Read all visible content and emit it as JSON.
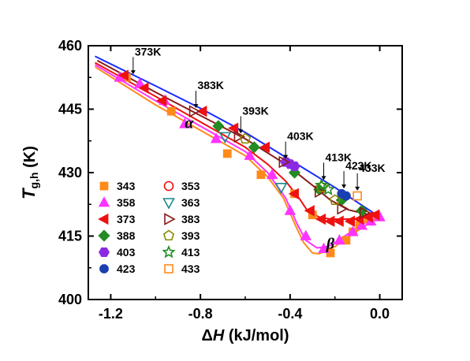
{
  "chart_data": {
    "type": "scatter",
    "xlabel": "ΔH (kJ/mol)",
    "ylabel": "T g,h (K)",
    "xlabel_parts": [
      "Δ",
      "H",
      " (kJ/mol)"
    ],
    "ylabel_parts": [
      "T",
      "g,h",
      " (K)"
    ],
    "xlim": [
      -1.3,
      0.1
    ],
    "ylim": [
      400,
      460
    ],
    "xticks": [
      "-1.2",
      "-0.8",
      "-0.4",
      "0.0"
    ],
    "xtick_values": [
      -1.2,
      -0.8,
      -0.4,
      0.0
    ],
    "yticks": [
      "400",
      "415",
      "430",
      "445",
      "460"
    ],
    "ytick_values": [
      400,
      415,
      430,
      445,
      460
    ],
    "grid": false,
    "legend_position": "bottom-left (inside plot)",
    "region_labels": [
      {
        "text": "α",
        "x": -0.85,
        "y": 440.5
      },
      {
        "text": "β",
        "x": -0.22,
        "y": 412
      }
    ],
    "annotations": [
      {
        "text": "373K",
        "x": -1.1,
        "y": 452.5
      },
      {
        "text": "383K",
        "x": -0.82,
        "y": 444.5
      },
      {
        "text": "393K",
        "x": -0.62,
        "y": 438.5
      },
      {
        "text": "403K",
        "x": -0.42,
        "y": 432.5
      },
      {
        "text": "413K",
        "x": -0.25,
        "y": 427.5
      },
      {
        "text": "423K",
        "x": -0.16,
        "y": 425.5
      },
      {
        "text": "433K",
        "x": -0.1,
        "y": 425
      }
    ],
    "series": [
      {
        "name": "343",
        "marker": "square",
        "filled": true,
        "color": "#ff8a1a",
        "x": [
          -1.13,
          -0.93,
          -0.68,
          -0.53,
          -0.38,
          -0.3,
          -0.22,
          -0.15,
          -0.12,
          -0.09,
          -0.05
        ],
        "y": [
          452.5,
          444.5,
          434.5,
          429.5,
          425.0,
          420.0,
          411.0,
          414.0,
          416.0,
          417.5,
          419.0
        ]
      },
      {
        "name": "358",
        "marker": "triangle-up",
        "filled": true,
        "color": "#ff33ff",
        "x": [
          -1.16,
          -1.07,
          -0.96,
          -0.87,
          -0.73,
          -0.58,
          -0.48,
          -0.4,
          -0.33,
          -0.25,
          -0.18,
          -0.12,
          -0.08,
          -0.04,
          0.0
        ],
        "y": [
          452.5,
          451.0,
          447.0,
          441.5,
          438.0,
          434.0,
          429.5,
          421.0,
          415.0,
          412.0,
          414.0,
          416.0,
          417.5,
          418.5,
          419.5
        ]
      },
      {
        "name": "373",
        "marker": "triangle-left",
        "filled": true,
        "color": "#ee1111",
        "x": [
          -1.14,
          -1.05,
          -0.97,
          -0.79,
          -0.65,
          -0.51,
          -0.38,
          -0.31,
          -0.26,
          -0.22,
          -0.18,
          -0.13,
          -0.09,
          -0.05,
          -0.02
        ],
        "y": [
          453.0,
          450.0,
          447.0,
          444.5,
          440.5,
          436.0,
          425.0,
          421.0,
          419.0,
          418.5,
          418.5,
          418.5,
          419.0,
          419.5,
          420.0
        ]
      },
      {
        "name": "388",
        "marker": "diamond",
        "filled": true,
        "color": "#228b22",
        "x": [
          -0.72,
          -0.56,
          -0.38,
          -0.27,
          -0.17,
          -0.08
        ],
        "y": [
          441.0,
          436.0,
          430.0,
          426.0,
          423.5,
          421.0
        ]
      },
      {
        "name": "403",
        "marker": "hexagon",
        "filled": true,
        "color": "#8a2be2",
        "x": [
          -0.42,
          -0.4,
          -0.38
        ],
        "y": [
          432.5,
          432.0,
          431.5
        ]
      },
      {
        "name": "423",
        "marker": "circle",
        "filled": true,
        "color": "#1a3fb0",
        "x": [
          -0.17,
          -0.15
        ],
        "y": [
          425.0,
          424.5
        ]
      },
      {
        "name": "353",
        "marker": "circle",
        "filled": false,
        "color": "#ee1111",
        "x": [],
        "y": []
      },
      {
        "name": "363",
        "marker": "triangle-down",
        "filled": false,
        "color": "#1a8a8a",
        "x": [
          -0.69,
          -0.44
        ],
        "y": [
          438.5,
          426.5
        ]
      },
      {
        "name": "383",
        "marker": "triangle-right",
        "filled": false,
        "color": "#8b1a1a",
        "x": [
          -0.83,
          -0.63,
          -0.43,
          -0.27,
          -0.17,
          -0.07
        ],
        "y": [
          444.5,
          438.5,
          432.5,
          425.5,
          421.5,
          420.5
        ]
      },
      {
        "name": "393",
        "marker": "pentagon",
        "filled": false,
        "color": "#8b8b00",
        "x": [
          -0.6,
          -0.26,
          -0.2
        ],
        "y": [
          438.0,
          426.5,
          423.5
        ]
      },
      {
        "name": "413",
        "marker": "star",
        "filled": false,
        "color": "#228b22",
        "x": [
          -0.26,
          -0.23
        ],
        "y": [
          427.0,
          426.0
        ]
      },
      {
        "name": "433",
        "marker": "square",
        "filled": false,
        "color": "#ff8a1a",
        "x": [
          -0.1
        ],
        "y": [
          424.5
        ]
      }
    ],
    "fit_lines": [
      {
        "color": "#1a2bff",
        "x": [
          -1.27,
          -1.0,
          -0.8,
          -0.6,
          -0.4,
          -0.2,
          0.0
        ],
        "y": [
          457.5,
          450.5,
          445.2,
          439.5,
          433.0,
          426.5,
          419.5
        ]
      },
      {
        "color": "#8b1a1a",
        "x": [
          -1.26,
          -1.0,
          -0.8,
          -0.6,
          -0.42,
          -0.3,
          -0.22,
          -0.14,
          -0.06,
          0.0
        ],
        "y": [
          456.5,
          449.0,
          443.5,
          438.0,
          432.0,
          427.0,
          423.5,
          421.2,
          420.2,
          419.8
        ]
      },
      {
        "color": "#ee1111",
        "x": [
          -1.27,
          -1.0,
          -0.8,
          -0.6,
          -0.5,
          -0.42,
          -0.36,
          -0.32,
          -0.27,
          -0.22,
          -0.15,
          -0.08,
          -0.03,
          0.0
        ],
        "y": [
          456.0,
          448.0,
          442.0,
          436.0,
          432.0,
          428.0,
          424.0,
          420.8,
          419.5,
          419.0,
          419.0,
          419.2,
          419.6,
          419.8
        ]
      },
      {
        "color": "#ff33ff",
        "x": [
          -1.27,
          -1.0,
          -0.8,
          -0.6,
          -0.5,
          -0.42,
          -0.37,
          -0.33,
          -0.28,
          -0.23,
          -0.17,
          -0.1,
          -0.05,
          0.0
        ],
        "y": [
          455.5,
          447.0,
          441.0,
          435.0,
          430.0,
          424.0,
          418.0,
          414.0,
          412.2,
          412.5,
          414.5,
          417.0,
          418.6,
          419.6
        ]
      },
      {
        "color": "#ff8a1a",
        "x": [
          -1.27,
          -1.0,
          -0.8,
          -0.6,
          -0.5,
          -0.43,
          -0.38,
          -0.34,
          -0.3,
          -0.27,
          -0.2,
          -0.12,
          -0.05,
          0.0
        ],
        "y": [
          455.0,
          446.0,
          440.0,
          434.0,
          429.0,
          424.0,
          418.0,
          413.5,
          411.0,
          410.8,
          412.5,
          415.5,
          418.0,
          419.5
        ]
      }
    ]
  }
}
